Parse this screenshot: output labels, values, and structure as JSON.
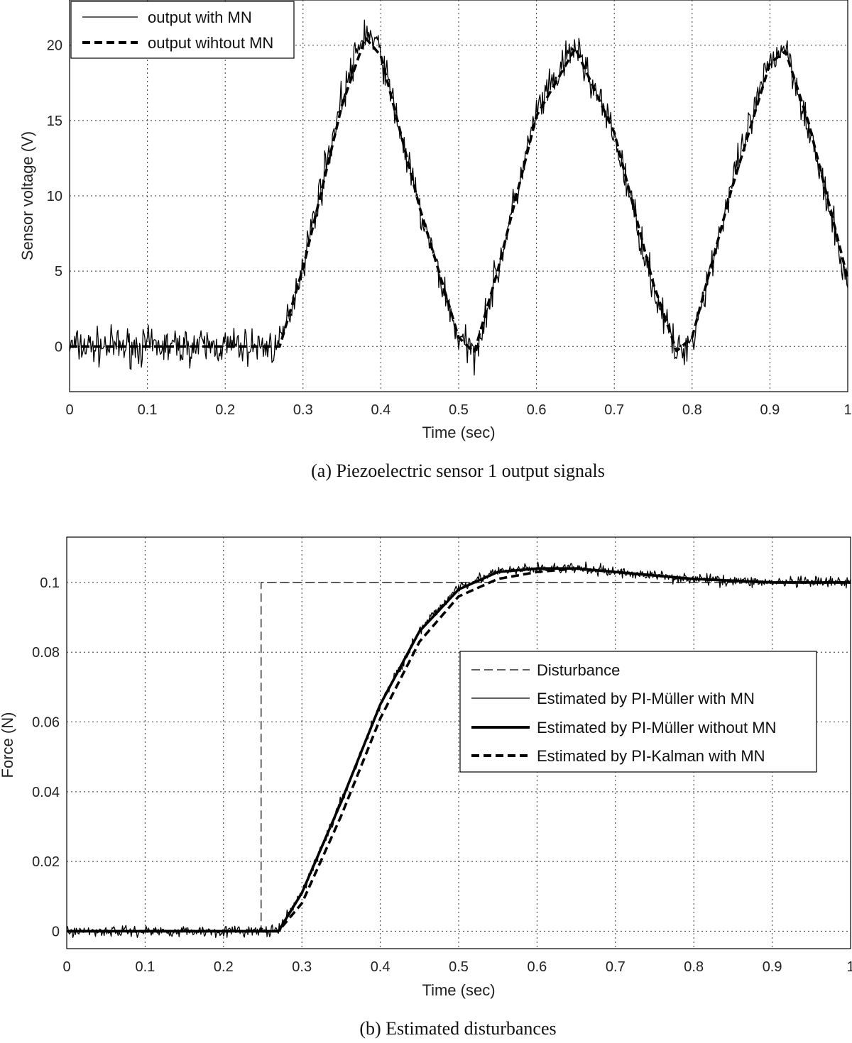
{
  "chart_data": [
    {
      "type": "line",
      "caption": "(a)   Piezoelectric sensor 1 output signals",
      "xlabel": "Time (sec)",
      "ylabel": "Sensor voltage (V)",
      "xlim": [
        0,
        1
      ],
      "ylim": [
        -3,
        23
      ],
      "xticks": [
        0,
        0.1,
        0.2,
        0.3,
        0.4,
        0.5,
        0.6,
        0.7,
        0.8,
        0.9,
        1
      ],
      "yticks": [
        0,
        5,
        10,
        15,
        20
      ],
      "xtick_labels": [
        "0",
        "0.1",
        "0.2",
        "0.3",
        "0.4",
        "0.5",
        "0.6",
        "0.7",
        "0.8",
        "0.9",
        "1"
      ],
      "ytick_labels": [
        "0",
        "5",
        "10",
        "15",
        "20"
      ],
      "grid": true,
      "legend_position": "top-left",
      "series": [
        {
          "name": "output with MN",
          "style": "thin-solid",
          "x": [
            0,
            0.05,
            0.1,
            0.15,
            0.2,
            0.25,
            0.27,
            0.3,
            0.35,
            0.38,
            0.4,
            0.45,
            0.5,
            0.52,
            0.55,
            0.6,
            0.65,
            0.7,
            0.75,
            0.78,
            0.8,
            0.85,
            0.9,
            0.92,
            0.95,
            1.0
          ],
          "y": [
            0,
            0,
            0,
            0,
            0,
            0,
            0,
            5.5,
            16.5,
            21,
            19.5,
            9,
            0.5,
            -0.5,
            5,
            15.5,
            20,
            14,
            4,
            -0.5,
            0.5,
            10.5,
            19,
            20,
            14.5,
            4
          ]
        },
        {
          "name": "output wihtout MN",
          "style": "thick-dashed",
          "x": [
            0,
            0.05,
            0.1,
            0.15,
            0.2,
            0.25,
            0.27,
            0.3,
            0.35,
            0.38,
            0.4,
            0.45,
            0.5,
            0.52,
            0.55,
            0.6,
            0.65,
            0.7,
            0.75,
            0.78,
            0.8,
            0.85,
            0.9,
            0.92,
            0.95,
            1.0
          ],
          "y": [
            0,
            0,
            0,
            0,
            0,
            0,
            0,
            5.2,
            16,
            20.5,
            19.3,
            9.2,
            0.6,
            -0.4,
            5,
            15.3,
            19.8,
            14.2,
            4.2,
            -0.3,
            0.6,
            10.3,
            18.8,
            19.6,
            14.8,
            4.5
          ]
        }
      ]
    },
    {
      "type": "line",
      "caption": "(b) Estimated disturbances",
      "xlabel": "Time (sec)",
      "ylabel": "Force (N)",
      "xlim": [
        0,
        1
      ],
      "ylim": [
        -0.005,
        0.113
      ],
      "xticks": [
        0,
        0.1,
        0.2,
        0.3,
        0.4,
        0.5,
        0.6,
        0.7,
        0.8,
        0.9,
        1
      ],
      "yticks": [
        0,
        0.02,
        0.04,
        0.06,
        0.08,
        0.1
      ],
      "xtick_labels": [
        "0",
        "0.1",
        "0.2",
        "0.3",
        "0.4",
        "0.5",
        "0.6",
        "0.7",
        "0.8",
        "0.9",
        "1"
      ],
      "ytick_labels": [
        "0",
        "0.02",
        "0.04",
        "0.06",
        "0.08",
        "0.1"
      ],
      "grid": true,
      "legend_position": "center-right",
      "series": [
        {
          "name": "Disturbance",
          "style": "thin-dashed",
          "x": [
            0,
            0.248,
            0.248,
            1.0
          ],
          "y": [
            0,
            0,
            0.1,
            0.1
          ]
        },
        {
          "name": "Estimated by PI-Müller with MN",
          "style": "thin-solid",
          "x": [
            0,
            0.1,
            0.2,
            0.27,
            0.3,
            0.35,
            0.4,
            0.45,
            0.5,
            0.55,
            0.6,
            0.65,
            0.7,
            0.8,
            0.9,
            1.0
          ],
          "y": [
            0,
            0,
            0,
            0,
            0.011,
            0.037,
            0.065,
            0.086,
            0.099,
            0.103,
            0.104,
            0.104,
            0.103,
            0.101,
            0.1,
            0.1
          ]
        },
        {
          "name": "Estimated by PI-Müller without MN",
          "style": "thick-solid",
          "x": [
            0,
            0.1,
            0.2,
            0.27,
            0.3,
            0.35,
            0.4,
            0.45,
            0.5,
            0.55,
            0.6,
            0.65,
            0.7,
            0.8,
            0.9,
            1.0
          ],
          "y": [
            0,
            0,
            0,
            0,
            0.011,
            0.037,
            0.065,
            0.086,
            0.098,
            0.103,
            0.104,
            0.104,
            0.103,
            0.101,
            0.1,
            0.1
          ]
        },
        {
          "name": "Estimated by PI-Kalman with MN",
          "style": "thick-dashed",
          "x": [
            0,
            0.1,
            0.2,
            0.27,
            0.3,
            0.35,
            0.4,
            0.45,
            0.5,
            0.55,
            0.6,
            0.65,
            0.7,
            0.8,
            0.9,
            1.0
          ],
          "y": [
            0,
            0,
            0,
            0,
            0.008,
            0.033,
            0.061,
            0.083,
            0.096,
            0.101,
            0.103,
            0.104,
            0.103,
            0.101,
            0.1,
            0.1
          ]
        }
      ]
    }
  ]
}
